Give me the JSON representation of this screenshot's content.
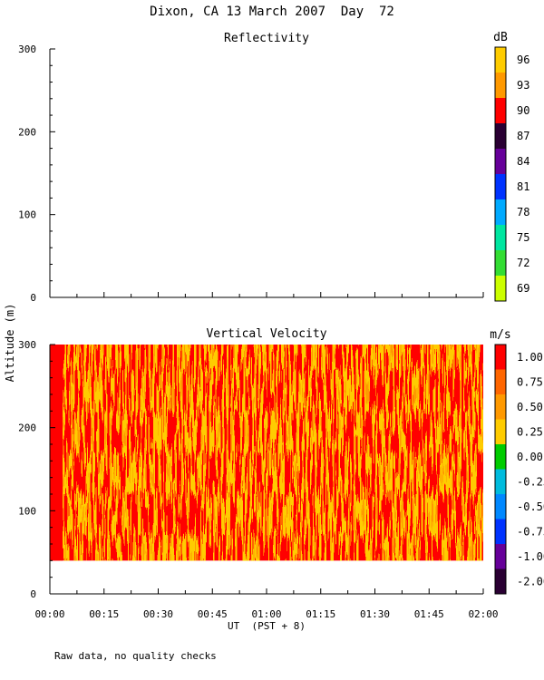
{
  "figure": {
    "title": "Dixon, CA 13 March 2007  Day  72",
    "ylabel": "Altitude (m)",
    "xlabel": "UT  (PST + 8)",
    "footnote": "Raw data, no quality checks"
  },
  "chart_data": [
    {
      "type": "heatmap",
      "title": "Reflectivity",
      "x_ticks": [
        "00:00",
        "00:15",
        "00:30",
        "00:45",
        "01:00",
        "01:15",
        "01:30",
        "01:45",
        "02:00"
      ],
      "y_ticks": [
        0,
        100,
        200,
        300
      ],
      "ylim": [
        0,
        300
      ],
      "xlim": [
        "00:00",
        "02:00"
      ],
      "data": "none",
      "colorbar": {
        "unit": "dB",
        "labels": [
          "96",
          "93",
          "90",
          "87",
          "84",
          "81",
          "78",
          "75",
          "72",
          "69"
        ],
        "colors": [
          "#ffcc00",
          "#ff9900",
          "#ff0000",
          "#2a0033",
          "#660099",
          "#0033ff",
          "#00aaff",
          "#00e6a0",
          "#33dd33",
          "#ccff00"
        ]
      }
    },
    {
      "type": "heatmap",
      "title": "Vertical Velocity",
      "x_ticks": [
        "00:00",
        "00:15",
        "00:30",
        "00:45",
        "01:00",
        "01:15",
        "01:30",
        "01:45",
        "02:00"
      ],
      "y_ticks": [
        0,
        100,
        200,
        300
      ],
      "ylim": [
        0,
        300
      ],
      "xlim": [
        "00:00",
        "02:00"
      ],
      "data_extent": {
        "x": [
          "00:00",
          "02:00"
        ],
        "y": [
          40,
          300
        ]
      },
      "dominant_values": [
        "1.00",
        "0.75",
        "0.50"
      ],
      "colorbar": {
        "unit": "m/s",
        "labels": [
          "1.00",
          "0.75",
          "0.50",
          "0.25",
          "0.00",
          "-0.25",
          "-0.50",
          "-0.75",
          "-1.00",
          "-2.00"
        ],
        "colors": [
          "#ff0000",
          "#ff6600",
          "#ff9900",
          "#ffcc00",
          "#00cc00",
          "#00bbdd",
          "#0088ff",
          "#0033ff",
          "#660099",
          "#2a0033"
        ]
      }
    }
  ]
}
